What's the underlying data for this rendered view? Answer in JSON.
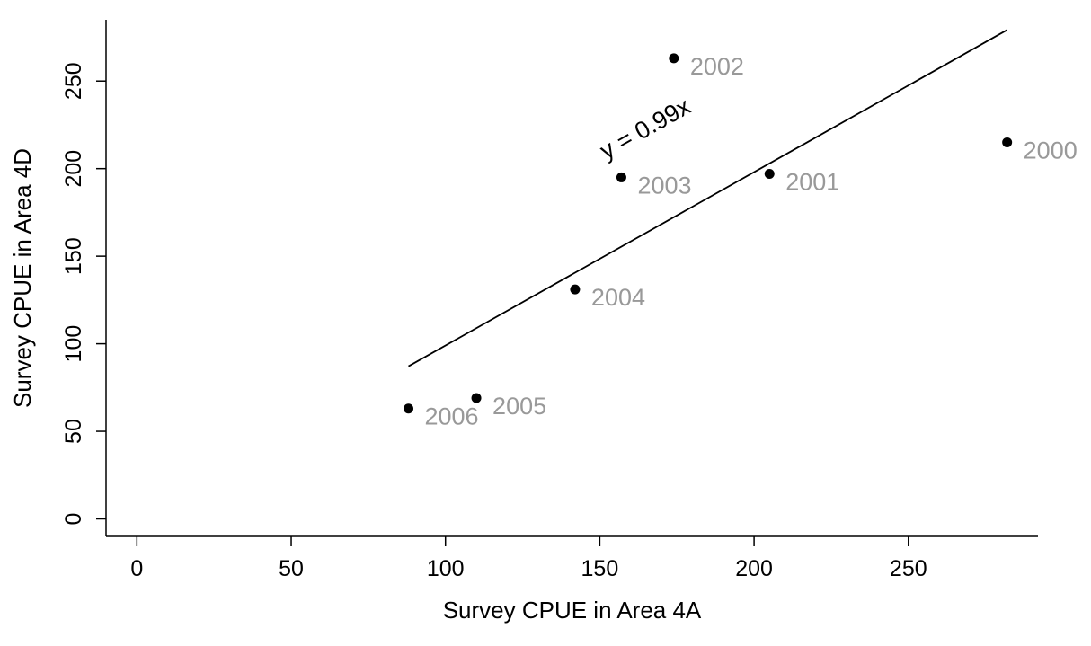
{
  "chart_data": {
    "type": "scatter",
    "title": "",
    "xlabel": "Survey CPUE in Area 4A",
    "ylabel": "Survey CPUE in Area 4D",
    "xlim": [
      -10,
      292
    ],
    "ylim": [
      -10,
      285
    ],
    "xticks": [
      0,
      50,
      100,
      150,
      200,
      250
    ],
    "yticks": [
      0,
      50,
      100,
      150,
      200,
      250
    ],
    "grid": false,
    "points": [
      {
        "x": 282,
        "y": 215,
        "label": "2000"
      },
      {
        "x": 205,
        "y": 197,
        "label": "2001"
      },
      {
        "x": 174,
        "y": 263,
        "label": "2002"
      },
      {
        "x": 157,
        "y": 195,
        "label": "2003"
      },
      {
        "x": 142,
        "y": 131,
        "label": "2004"
      },
      {
        "x": 110,
        "y": 69,
        "label": "2005"
      },
      {
        "x": 88,
        "y": 63,
        "label": "2006"
      }
    ],
    "fit": {
      "slope": 0.99,
      "x_range": [
        88,
        282
      ],
      "label": "y = 0.99x"
    },
    "colors": {
      "points": "#000000",
      "labels": "#999999",
      "axes": "#000000",
      "fit_line": "#000000"
    }
  }
}
